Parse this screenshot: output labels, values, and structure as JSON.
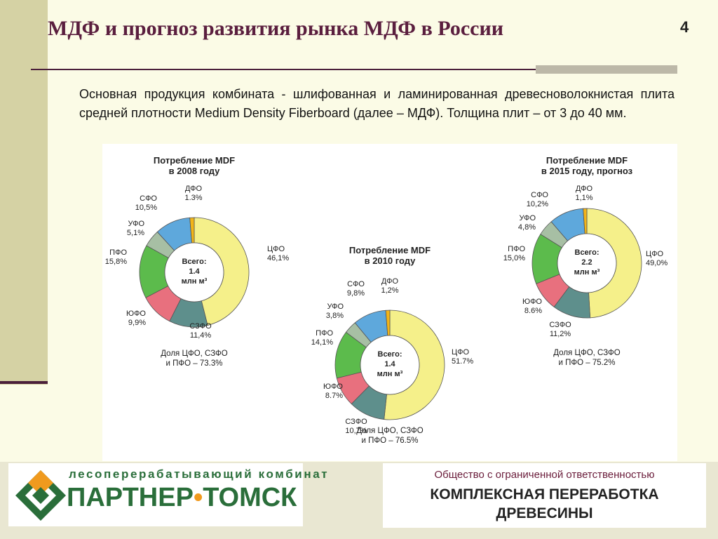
{
  "slide": {
    "title": "МДФ и прогноз развития рынка МДФ в России",
    "page_number": "4",
    "body_text": "Основная продукция комбината - шлифованная и ламинированная древесноволокнистая плита средней плотности Medium Density Fiberboard (далее – МДФ). Толщина плит – от 3 до 40 мм."
  },
  "chart_data": [
    {
      "type": "pie",
      "title": "Потребление MDF в 2008 году",
      "center_label": [
        "Всего:",
        "1.4",
        "млн м³"
      ],
      "footnote": "Доля ЦФО, СЗФО и ПФО – 73.3%",
      "slices": [
        {
          "name": "ЦФО",
          "label": "46,1%",
          "value": 46.1,
          "color": "#f5f08a"
        },
        {
          "name": "СЗФО",
          "label": "11,4%",
          "value": 11.4,
          "color": "#5e8f8c"
        },
        {
          "name": "ЮФО",
          "label": "9,9%",
          "value": 9.9,
          "color": "#e8707e"
        },
        {
          "name": "ПФО",
          "label": "15,8%",
          "value": 15.8,
          "color": "#5cbb4c"
        },
        {
          "name": "УФО",
          "label": "5,1%",
          "value": 5.1,
          "color": "#a7bfa4"
        },
        {
          "name": "СФО",
          "label": "10,5%",
          "value": 10.5,
          "color": "#5ea8dc"
        },
        {
          "name": "ДФО",
          "label": "1.3%",
          "value": 1.3,
          "color": "#f2b418"
        }
      ]
    },
    {
      "type": "pie",
      "title": "Потребление MDF в 2010 году",
      "center_label": [
        "Всего:",
        "1.4",
        "млн м³"
      ],
      "footnote": "Доля ЦФО, СЗФО и ПФО – 76.5%",
      "slices": [
        {
          "name": "ЦФО",
          "label": "51.7%",
          "value": 51.7,
          "color": "#f5f08a"
        },
        {
          "name": "СЗФО",
          "label": "10,7%",
          "value": 10.7,
          "color": "#5e8f8c"
        },
        {
          "name": "ЮФО",
          "label": "8.7%",
          "value": 8.7,
          "color": "#e8707e"
        },
        {
          "name": "ПФО",
          "label": "14,1%",
          "value": 14.1,
          "color": "#5cbb4c"
        },
        {
          "name": "УФО",
          "label": "3,8%",
          "value": 3.8,
          "color": "#a7bfa4"
        },
        {
          "name": "СФО",
          "label": "9,8%",
          "value": 9.8,
          "color": "#5ea8dc"
        },
        {
          "name": "ДФО",
          "label": "1,2%",
          "value": 1.2,
          "color": "#f2b418"
        }
      ]
    },
    {
      "type": "pie",
      "title": "Потребление MDF в 2015 году, прогноз",
      "center_label": [
        "Всего:",
        "2.2",
        "млн м³"
      ],
      "footnote": "Доля ЦФО, СЗФО и ПФО – 75.2%",
      "slices": [
        {
          "name": "ЦФО",
          "label": "49,0%",
          "value": 49.0,
          "color": "#f5f08a"
        },
        {
          "name": "СЗФО",
          "label": "11,2%",
          "value": 11.2,
          "color": "#5e8f8c"
        },
        {
          "name": "ЮФО",
          "label": "8.6%",
          "value": 8.6,
          "color": "#e8707e"
        },
        {
          "name": "ПФО",
          "label": "15,0%",
          "value": 15.0,
          "color": "#5cbb4c"
        },
        {
          "name": "УФО",
          "label": "4,8%",
          "value": 4.8,
          "color": "#a7bfa4"
        },
        {
          "name": "СФО",
          "label": "10,2%",
          "value": 10.2,
          "color": "#5ea8dc"
        },
        {
          "name": "ДФО",
          "label": "1,1%",
          "value": 1.1,
          "color": "#f2b418"
        }
      ]
    }
  ],
  "footer": {
    "logo_tagline": "лесоперерабатывающий комбинат",
    "logo_name_part1": "ПАРТНЕР",
    "logo_name_part2": "ТОМСК",
    "company_type": "Общество с ограниченной ответственностью",
    "company_name": "КОМПЛЕКСНАЯ ПЕРЕРАБОТКА ДРЕВЕСИНЫ"
  }
}
